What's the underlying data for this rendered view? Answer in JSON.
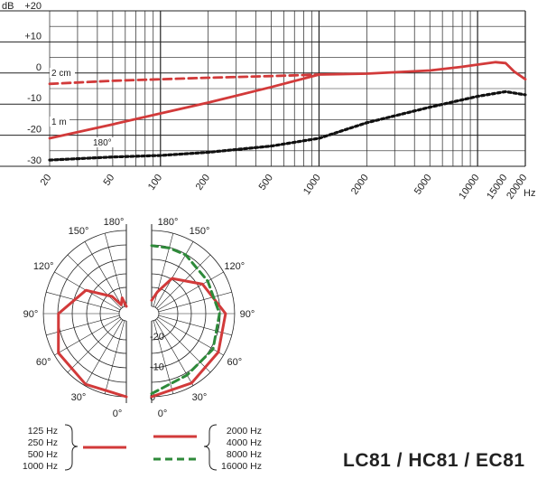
{
  "model_title": "LC81 / HC81 / EC81",
  "colors": {
    "red": "#d23a3a",
    "green": "#2e8a3a",
    "black": "#111111",
    "grid": "#222222"
  },
  "chart_data": [
    {
      "type": "line",
      "title": "",
      "y_unit": "dB",
      "x_unit": "Hz",
      "x_scale": "log",
      "xlim": [
        20,
        20000
      ],
      "ylim": [
        -30,
        20
      ],
      "y_ticks": [
        "+20",
        "+10",
        "0",
        "-10",
        "-20",
        "-30"
      ],
      "x_ticks": [
        "20",
        "50",
        "100",
        "200",
        "500",
        "1000",
        "2000",
        "5000",
        "10000",
        "15000",
        "20000"
      ],
      "grid": true,
      "series": [
        {
          "name": "2 cm",
          "color": "red",
          "dash": "dashed",
          "points": [
            [
              20,
              -3.5
            ],
            [
              50,
              -2.5
            ],
            [
              100,
              -2
            ],
            [
              200,
              -1.5
            ],
            [
              500,
              -1
            ],
            [
              1000,
              -0.5
            ]
          ]
        },
        {
          "name": "",
          "color": "red",
          "dash": "solid",
          "points": [
            [
              1000,
              -0.5
            ],
            [
              2000,
              -0.2
            ],
            [
              5000,
              0.8
            ],
            [
              8000,
              2
            ],
            [
              10000,
              2.7
            ],
            [
              13000,
              3.5
            ],
            [
              15000,
              3.2
            ],
            [
              17000,
              0.5
            ],
            [
              20000,
              -2
            ]
          ]
        },
        {
          "name": "1 m",
          "color": "red",
          "dash": "solid",
          "points": [
            [
              20,
              -21
            ],
            [
              50,
              -16.5
            ],
            [
              100,
              -13
            ],
            [
              200,
              -9.5
            ],
            [
              500,
              -4.5
            ],
            [
              1000,
              -0.5
            ]
          ]
        },
        {
          "name": "180°",
          "color": "black",
          "dash": "dotted",
          "points": [
            [
              20,
              -28
            ],
            [
              50,
              -27
            ],
            [
              100,
              -26.5
            ],
            [
              200,
              -25.5
            ],
            [
              500,
              -23.5
            ],
            [
              1000,
              -21
            ],
            [
              2000,
              -16
            ],
            [
              5000,
              -11
            ],
            [
              10000,
              -7.5
            ],
            [
              15000,
              -6
            ],
            [
              20000,
              -7
            ]
          ]
        }
      ]
    },
    {
      "type": "polar",
      "angle_labels_left": [
        "180°",
        "150°",
        "120°",
        "90°",
        "60°",
        "30°",
        "0°"
      ],
      "angle_labels_right": [
        "180°",
        "150°",
        "120°",
        "90°",
        "60°",
        "30°",
        "0°"
      ],
      "radial_labels": [
        "-20",
        "-10",
        "0"
      ],
      "radial_range_db": [
        -25,
        0
      ],
      "left_half": {
        "frequencies": [
          "125 Hz",
          "250 Hz",
          "500 Hz",
          "1000 Hz"
        ],
        "series": [
          {
            "color": "red",
            "dash": "solid",
            "points_deg_db": [
              [
                0,
                0
              ],
              [
                30,
                -0.5
              ],
              [
                60,
                -1.5
              ],
              [
                90,
                -5
              ],
              [
                120,
                -12
              ],
              [
                140,
                -20
              ],
              [
                150,
                -24
              ],
              [
                165,
                -22
              ],
              [
                180,
                -25
              ]
            ]
          }
        ]
      },
      "right_half": {
        "frequencies_solid": [
          "2000 Hz",
          "4000 Hz"
        ],
        "frequencies_dashed": [
          "8000 Hz",
          "16000 Hz"
        ],
        "series": [
          {
            "color": "red",
            "dash": "solid",
            "points_deg_db": [
              [
                0,
                0
              ],
              [
                30,
                -1
              ],
              [
                60,
                -2
              ],
              [
                90,
                -3
              ],
              [
                120,
                -8
              ],
              [
                150,
                -14
              ],
              [
                165,
                -20
              ],
              [
                180,
                -23
              ]
            ]
          },
          {
            "color": "green",
            "dash": "dashed",
            "points_deg_db": [
              [
                0,
                -1
              ],
              [
                30,
                -4
              ],
              [
                60,
                -4
              ],
              [
                90,
                -5
              ],
              [
                120,
                -6
              ],
              [
                150,
                -5
              ],
              [
                165,
                -5
              ],
              [
                180,
                -5
              ]
            ]
          }
        ]
      }
    }
  ]
}
